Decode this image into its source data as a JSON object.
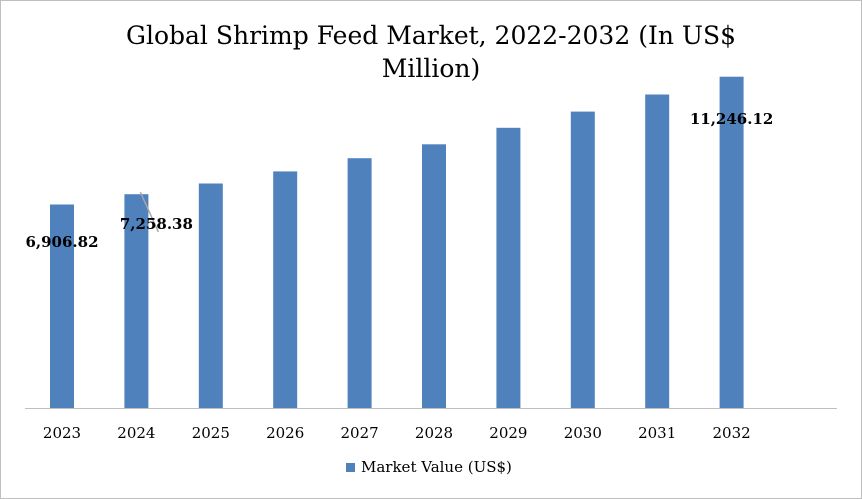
{
  "chart_data": {
    "type": "bar",
    "title": "Global Shrimp Feed Market, 2022-2032 (In US$ Million)",
    "categories": [
      "2023",
      "2024",
      "2025",
      "2026",
      "2027",
      "2028",
      "2029",
      "2030",
      "2031",
      "2032"
    ],
    "series": [
      {
        "name": "Market Value (US$)",
        "values": [
          6906.82,
          7258.38,
          7620,
          8030,
          8480,
          8950,
          9510,
          10060,
          10640,
          11246.12
        ],
        "data_labels": [
          "6,906.82",
          "7,258.38",
          "",
          "",
          "",
          "",
          "",
          "",
          "",
          "11,246.12"
        ]
      }
    ],
    "xlabel": "",
    "ylabel": "",
    "y_axis_visible": false,
    "ylim": [
      0,
      13000
    ],
    "grid": false,
    "legend_position": "bottom",
    "colors": {
      "bar": "#4F81BD",
      "axis": "#bfbfbf",
      "label_leader": "#a6a6a6"
    }
  }
}
